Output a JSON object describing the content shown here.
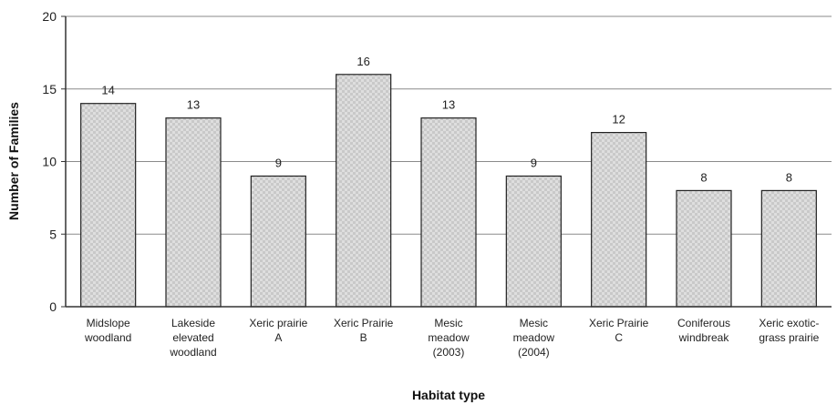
{
  "chart_data": {
    "type": "bar",
    "title": "",
    "xlabel": "Habitat type",
    "ylabel": "Number of Families",
    "ylim": [
      0,
      20
    ],
    "yticks": [
      0,
      5,
      10,
      15,
      20
    ],
    "grid": "horizontal",
    "legend": "none",
    "bar_fill": "#d8d8d8",
    "categories": [
      [
        "Midslope",
        "woodland"
      ],
      [
        "Lakeside",
        "elevated",
        "woodland"
      ],
      [
        "Xeric prairie",
        "A"
      ],
      [
        "Xeric Prairie",
        "B"
      ],
      [
        "Mesic",
        "meadow",
        "(2003)"
      ],
      [
        "Mesic",
        "meadow",
        "(2004)"
      ],
      [
        "Xeric Prairie",
        "C"
      ],
      [
        "Coniferous",
        "windbreak"
      ],
      [
        "Xeric exotic-",
        "grass prairie"
      ]
    ],
    "values": [
      14,
      13,
      9,
      16,
      13,
      9,
      12,
      8,
      8
    ]
  }
}
